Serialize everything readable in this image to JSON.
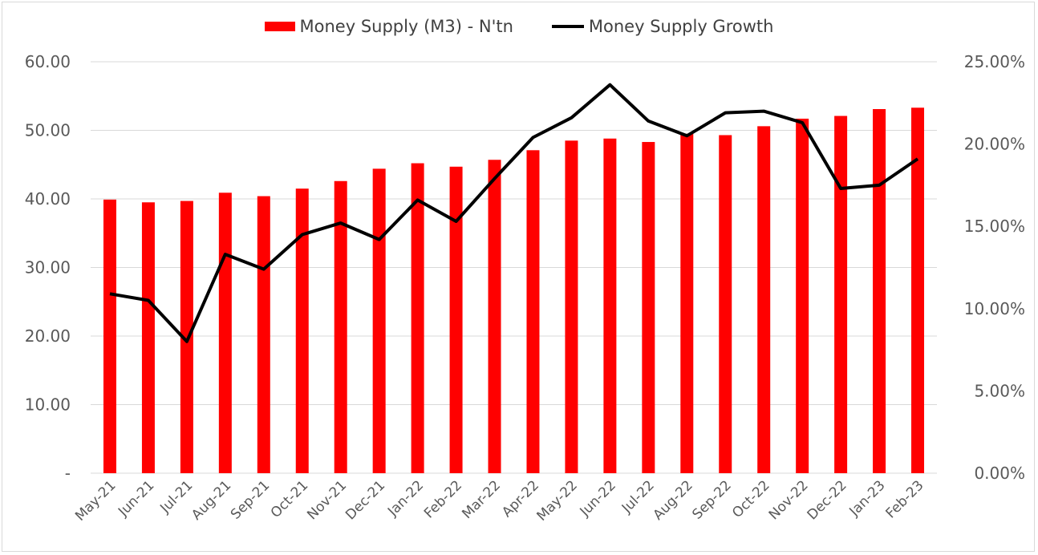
{
  "legend": {
    "bar_label": "Money Supply (M3) - N'tn",
    "line_label": "Money Supply Growth"
  },
  "colors": {
    "bar": "#ff0000",
    "line": "#000000",
    "grid": "#d9d9d9"
  },
  "chart_data": {
    "type": "bar",
    "categories": [
      "May-21",
      "Jun-21",
      "Jul-21",
      "Aug-21",
      "Sep-21",
      "Oct-21",
      "Nov-21",
      "Dec-21",
      "Jan-22",
      "Feb-22",
      "Mar-22",
      "Apr-22",
      "May-22",
      "Jun-22",
      "Jul-22",
      "Aug-22",
      "Sep-22",
      "Oct-22",
      "Nov-22",
      "Dec-22",
      "Jan-23",
      "Feb-23"
    ],
    "series": [
      {
        "name": "Money Supply (M3) - N'tn",
        "type": "bar",
        "axis": "left",
        "values": [
          39.9,
          39.5,
          39.7,
          40.9,
          40.4,
          41.5,
          42.6,
          44.4,
          45.2,
          44.7,
          45.7,
          47.1,
          48.5,
          48.8,
          48.3,
          49.5,
          49.3,
          50.6,
          51.7,
          52.1,
          53.1,
          53.3
        ]
      },
      {
        "name": "Money Supply Growth",
        "type": "line",
        "axis": "right",
        "values": [
          10.9,
          10.5,
          8.0,
          13.3,
          12.4,
          14.5,
          15.2,
          14.2,
          16.6,
          15.3,
          17.9,
          20.4,
          21.6,
          23.6,
          21.4,
          20.5,
          21.9,
          22.0,
          21.3,
          17.3,
          17.5,
          19.1
        ]
      }
    ],
    "left_axis": {
      "ylim": [
        0,
        60
      ],
      "ticks": [
        "-",
        "10.00",
        "20.00",
        "30.00",
        "40.00",
        "50.00",
        "60.00"
      ]
    },
    "right_axis": {
      "ylim": [
        0,
        25
      ],
      "ticks": [
        "0.00%",
        "5.00%",
        "10.00%",
        "15.00%",
        "20.00%",
        "25.00%"
      ]
    },
    "grid": true,
    "legend_position": "top"
  }
}
